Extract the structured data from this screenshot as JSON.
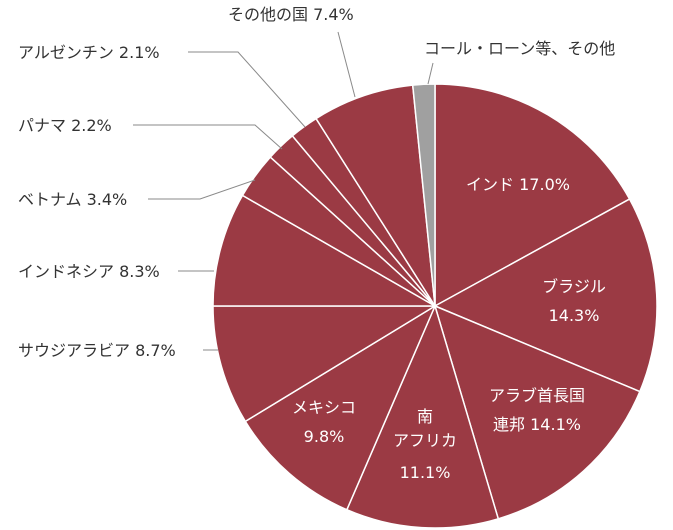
{
  "chart_data": {
    "type": "pie",
    "start_angle_deg": 0,
    "direction": "clockwise",
    "colors": {
      "main": "#9b3a44",
      "other": "#a0a0a0",
      "edge": "#ffffff"
    },
    "slices": [
      {
        "label": "インド",
        "value": 17.0,
        "display": "17.0%",
        "color": "#9b3a44"
      },
      {
        "label": "ブラジル",
        "value": 14.3,
        "display": "14.3%",
        "color": "#9b3a44"
      },
      {
        "label": "アラブ首長国連邦",
        "value": 14.1,
        "display": "14.1%",
        "color": "#9b3a44"
      },
      {
        "label": "南アフリカ",
        "value": 11.1,
        "display": "11.1%",
        "color": "#9b3a44"
      },
      {
        "label": "メキシコ",
        "value": 9.8,
        "display": "9.8%",
        "color": "#9b3a44"
      },
      {
        "label": "サウジアラビア",
        "value": 8.7,
        "display": "8.7%",
        "color": "#9b3a44"
      },
      {
        "label": "インドネシア",
        "value": 8.3,
        "display": "8.3%",
        "color": "#9b3a44"
      },
      {
        "label": "ベトナム",
        "value": 3.4,
        "display": "3.4%",
        "color": "#9b3a44"
      },
      {
        "label": "パナマ",
        "value": 2.2,
        "display": "2.2%",
        "color": "#9b3a44"
      },
      {
        "label": "アルゼンチン",
        "value": 2.1,
        "display": "2.1%",
        "color": "#9b3a44"
      },
      {
        "label": "その他の国",
        "value": 7.4,
        "display": "7.4%",
        "color": "#9b3a44"
      },
      {
        "label": "コール・ローン等、その他",
        "value": 1.6,
        "display": "",
        "color": "#a0a0a0"
      }
    ]
  },
  "labels": {
    "india": "インド 17.0%",
    "brazil_name": "ブラジル",
    "brazil_pct": "14.3%",
    "uae_line1": "アラブ首長国",
    "uae_line2": "連邦 14.1%",
    "sa_line1": "南",
    "sa_line2": "アフリカ",
    "sa_line3": "11.1%",
    "mexico_name": "メキシコ",
    "mexico_pct": "9.8%",
    "saudi": "サウジアラビア 8.7%",
    "indonesia": "インドネシア 8.3%",
    "vietnam": "ベトナム 3.4%",
    "panama": "パナマ 2.2%",
    "argentina": "アルゼンチン 2.1%",
    "other_countries": "その他の国 7.4%",
    "call_loan": "コール・ローン等、その他"
  }
}
